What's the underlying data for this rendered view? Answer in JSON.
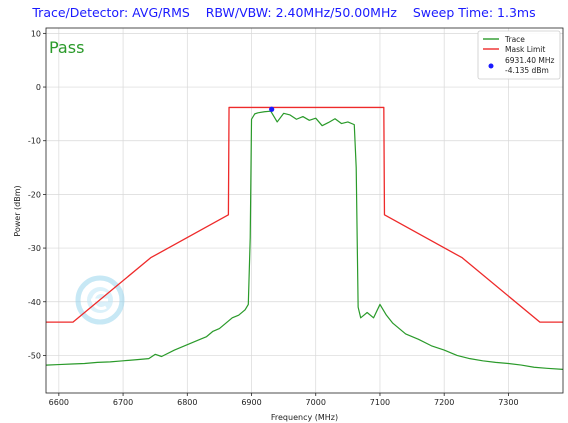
{
  "header": {
    "detector": "Trace/Detector: AVG/RMS",
    "bandwidth": "RBW/VBW: 2.40MHz/50.00MHz",
    "sweep": "Sweep Time: 1.3ms"
  },
  "colors": {
    "title": "#1a1aff",
    "trace": "#2a9a2a",
    "mask": "#ee2a2a",
    "marker": "#1a1aff",
    "pass": "#2a9a2a",
    "grid": "#d8d8d8"
  },
  "chart_data": {
    "type": "line",
    "status": "Pass",
    "xlabel": "Frequency (MHz)",
    "ylabel": "Power (dBm)",
    "xlim": [
      6580,
      7385
    ],
    "ylim": [
      -57,
      11
    ],
    "xticks": [
      6600,
      6700,
      6800,
      6900,
      7000,
      7100,
      7200,
      7300
    ],
    "yticks": [
      10,
      0,
      -10,
      -20,
      -30,
      -40,
      -50
    ],
    "grid": true,
    "legend_position": "top-right",
    "series": [
      {
        "name": "Trace",
        "color": "#2a9a2a",
        "x": [
          6580,
          6600,
          6620,
          6640,
          6660,
          6680,
          6700,
          6720,
          6740,
          6750,
          6760,
          6780,
          6800,
          6820,
          6830,
          6840,
          6850,
          6860,
          6870,
          6880,
          6890,
          6895,
          6898,
          6900,
          6905,
          6910,
          6920,
          6930,
          6935,
          6940,
          6950,
          6960,
          6970,
          6980,
          6990,
          7000,
          7010,
          7020,
          7030,
          7040,
          7050,
          7060,
          7063,
          7066,
          7070,
          7075,
          7080,
          7090,
          7100,
          7110,
          7120,
          7140,
          7160,
          7180,
          7200,
          7220,
          7240,
          7260,
          7280,
          7300,
          7320,
          7340,
          7360,
          7385
        ],
        "y": [
          -51.8,
          -51.7,
          -51.6,
          -51.5,
          -51.3,
          -51.2,
          -51.0,
          -50.8,
          -50.6,
          -49.8,
          -50.2,
          -49.0,
          -48.0,
          -47.0,
          -46.5,
          -45.5,
          -45.0,
          -44.0,
          -43.0,
          -42.5,
          -41.5,
          -40.5,
          -28.0,
          -6.0,
          -5.0,
          -4.8,
          -4.6,
          -4.5,
          -5.5,
          -6.5,
          -4.9,
          -5.2,
          -6.0,
          -5.5,
          -6.2,
          -5.8,
          -7.2,
          -6.6,
          -5.9,
          -6.8,
          -6.5,
          -7.0,
          -15.0,
          -41.0,
          -43.0,
          -42.5,
          -42.0,
          -43.0,
          -40.5,
          -42.5,
          -44.0,
          -46.0,
          -47.0,
          -48.2,
          -49.0,
          -50.0,
          -50.6,
          -51.0,
          -51.3,
          -51.5,
          -51.8,
          -52.2,
          -52.4,
          -52.6
        ]
      },
      {
        "name": "Mask Limit",
        "color": "#ee2a2a",
        "x": [
          6580,
          6622,
          6743,
          6864,
          6865,
          7106,
          7107,
          7228,
          7349,
          7385
        ],
        "y": [
          -43.8,
          -43.8,
          -31.8,
          -23.8,
          -3.8,
          -3.8,
          -23.8,
          -31.8,
          -43.8,
          -43.8
        ]
      }
    ],
    "marker": {
      "x": 6931.4,
      "y": -4.135,
      "label_freq": "6931.40 MHz",
      "label_power": "-4.135 dBm"
    }
  }
}
